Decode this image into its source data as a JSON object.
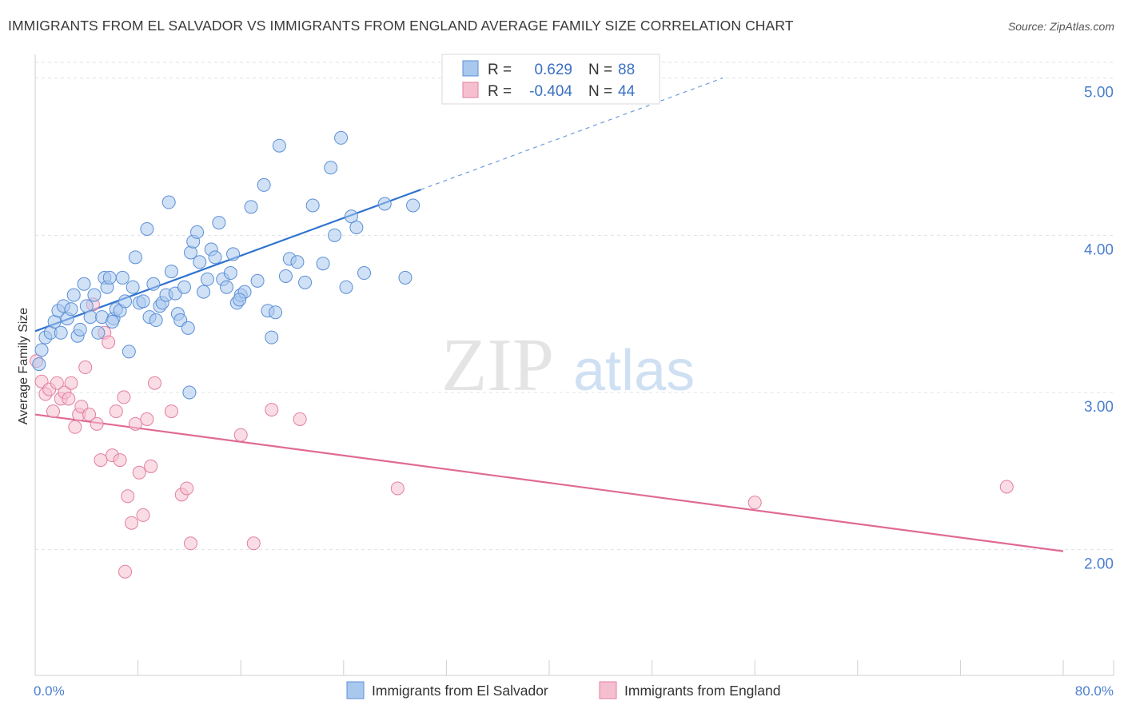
{
  "title": "IMMIGRANTS FROM EL SALVADOR VS IMMIGRANTS FROM ENGLAND AVERAGE FAMILY SIZE CORRELATION CHART",
  "source": "Source: ZipAtlas.com",
  "watermark": {
    "zip": "ZIP",
    "atlas": "atlas"
  },
  "colors": {
    "blue_fill": "#a9c8ee",
    "blue_stroke": "#5b8fd6",
    "blue_line": "#2f72d0",
    "pink_fill": "#f6bfd0",
    "pink_stroke": "#e27fa0",
    "pink_line": "#e06a95",
    "grid": "#dde3ea",
    "tick_label": "#4a7fcf"
  },
  "legend": {
    "rows": [
      {
        "r_label": "R =",
        "r_value": "0.629",
        "n_label": "N =",
        "n_value": "88",
        "color": "blue"
      },
      {
        "r_label": "R =",
        "r_value": "-0.404",
        "n_label": "N =",
        "n_value": "44",
        "color": "pink"
      }
    ]
  },
  "chart_data": {
    "type": "scatter",
    "title": "IMMIGRANTS FROM EL SALVADOR VS IMMIGRANTS FROM ENGLAND AVERAGE FAMILY SIZE CORRELATION CHART",
    "xlabel": "",
    "ylabel": "Average Family Size",
    "xlim": [
      0,
      80
    ],
    "ylim": [
      1.2,
      5.1
    ],
    "x_tick_labels": [
      "0.0%",
      "80.0%"
    ],
    "y_ticks": [
      2.0,
      3.0,
      4.0,
      5.0
    ],
    "y_tick_labels": [
      "2.00",
      "3.00",
      "4.00",
      "5.00"
    ],
    "grid": true,
    "legend_position": "top-center",
    "series": [
      {
        "name": "Immigrants from El Salvador",
        "color": "#5b8fd6",
        "r": 0.629,
        "n": 88,
        "trend": {
          "x": [
            0,
            30
          ],
          "y": [
            3.39,
            4.29
          ],
          "extended_to": [
            53.5,
            5.0
          ]
        },
        "points": [
          [
            0.3,
            3.18
          ],
          [
            0.5,
            3.27
          ],
          [
            0.8,
            3.35
          ],
          [
            1.2,
            3.38
          ],
          [
            1.5,
            3.45
          ],
          [
            1.8,
            3.52
          ],
          [
            2.0,
            3.38
          ],
          [
            2.2,
            3.55
          ],
          [
            2.5,
            3.47
          ],
          [
            2.8,
            3.53
          ],
          [
            3.0,
            3.62
          ],
          [
            3.3,
            3.36
          ],
          [
            3.5,
            3.4
          ],
          [
            3.8,
            3.69
          ],
          [
            4.0,
            3.55
          ],
          [
            4.3,
            3.48
          ],
          [
            4.6,
            3.62
          ],
          [
            4.9,
            3.38
          ],
          [
            5.2,
            3.48
          ],
          [
            5.4,
            3.73
          ],
          [
            5.6,
            3.67
          ],
          [
            5.8,
            3.73
          ],
          [
            6.1,
            3.47
          ],
          [
            6.3,
            3.53
          ],
          [
            6.6,
            3.52
          ],
          [
            6.8,
            3.73
          ],
          [
            7.0,
            3.58
          ],
          [
            7.3,
            3.26
          ],
          [
            7.6,
            3.67
          ],
          [
            7.8,
            3.86
          ],
          [
            8.1,
            3.57
          ],
          [
            8.4,
            3.58
          ],
          [
            8.7,
            4.04
          ],
          [
            8.9,
            3.48
          ],
          [
            9.2,
            3.69
          ],
          [
            9.4,
            3.46
          ],
          [
            9.7,
            3.55
          ],
          [
            9.9,
            3.57
          ],
          [
            10.2,
            3.62
          ],
          [
            10.4,
            4.21
          ],
          [
            10.6,
            3.77
          ],
          [
            10.9,
            3.63
          ],
          [
            11.1,
            3.5
          ],
          [
            11.3,
            3.46
          ],
          [
            11.6,
            3.67
          ],
          [
            11.9,
            3.41
          ],
          [
            12.1,
            3.89
          ],
          [
            12.3,
            3.96
          ],
          [
            12.6,
            4.02
          ],
          [
            12.8,
            3.83
          ],
          [
            13.1,
            3.64
          ],
          [
            13.4,
            3.72
          ],
          [
            13.7,
            3.91
          ],
          [
            14.0,
            3.86
          ],
          [
            14.3,
            4.08
          ],
          [
            14.6,
            3.72
          ],
          [
            14.9,
            3.67
          ],
          [
            15.2,
            3.76
          ],
          [
            15.4,
            3.88
          ],
          [
            15.7,
            3.57
          ],
          [
            16.0,
            3.62
          ],
          [
            16.3,
            3.64
          ],
          [
            12.0,
            3.0
          ],
          [
            16.8,
            4.18
          ],
          [
            17.3,
            3.71
          ],
          [
            17.8,
            4.32
          ],
          [
            18.1,
            3.52
          ],
          [
            18.4,
            3.35
          ],
          [
            18.7,
            3.51
          ],
          [
            19.0,
            4.57
          ],
          [
            19.5,
            3.74
          ],
          [
            19.8,
            3.85
          ],
          [
            20.4,
            3.83
          ],
          [
            21.0,
            3.7
          ],
          [
            21.6,
            4.19
          ],
          [
            22.4,
            3.82
          ],
          [
            23.0,
            4.43
          ],
          [
            23.3,
            4.0
          ],
          [
            23.8,
            4.62
          ],
          [
            24.2,
            3.67
          ],
          [
            24.6,
            4.12
          ],
          [
            25.0,
            4.05
          ],
          [
            25.6,
            3.76
          ],
          [
            27.2,
            4.2
          ],
          [
            28.8,
            3.73
          ],
          [
            29.4,
            4.19
          ],
          [
            15.9,
            3.59
          ],
          [
            6.0,
            3.45
          ]
        ]
      },
      {
        "name": "Immigrants from England",
        "color": "#e27fa0",
        "r": -0.404,
        "n": 44,
        "trend": {
          "x": [
            0,
            80
          ],
          "y": [
            2.86,
            1.99
          ]
        },
        "points": [
          [
            0.1,
            3.2
          ],
          [
            0.5,
            3.07
          ],
          [
            0.8,
            2.99
          ],
          [
            1.1,
            3.02
          ],
          [
            1.4,
            2.88
          ],
          [
            1.7,
            3.06
          ],
          [
            2.0,
            2.96
          ],
          [
            2.3,
            3.0
          ],
          [
            2.6,
            2.96
          ],
          [
            2.8,
            3.06
          ],
          [
            3.1,
            2.78
          ],
          [
            3.4,
            2.86
          ],
          [
            3.6,
            2.91
          ],
          [
            3.9,
            3.16
          ],
          [
            4.2,
            2.86
          ],
          [
            4.5,
            3.56
          ],
          [
            4.8,
            2.8
          ],
          [
            5.1,
            2.57
          ],
          [
            5.4,
            3.38
          ],
          [
            5.7,
            3.32
          ],
          [
            6.0,
            2.6
          ],
          [
            6.3,
            2.88
          ],
          [
            6.6,
            2.57
          ],
          [
            6.9,
            2.97
          ],
          [
            7.2,
            2.34
          ],
          [
            7.5,
            2.17
          ],
          [
            7.8,
            2.8
          ],
          [
            8.1,
            2.49
          ],
          [
            8.4,
            2.22
          ],
          [
            8.7,
            2.83
          ],
          [
            9.0,
            2.53
          ],
          [
            9.3,
            3.06
          ],
          [
            10.6,
            2.88
          ],
          [
            11.4,
            2.35
          ],
          [
            11.8,
            2.39
          ],
          [
            12.1,
            2.04
          ],
          [
            16.0,
            2.73
          ],
          [
            17.0,
            2.04
          ],
          [
            18.4,
            2.89
          ],
          [
            20.6,
            2.83
          ],
          [
            28.2,
            2.39
          ],
          [
            56.0,
            2.3
          ],
          [
            75.6,
            2.4
          ],
          [
            7.0,
            1.86
          ]
        ]
      }
    ]
  }
}
